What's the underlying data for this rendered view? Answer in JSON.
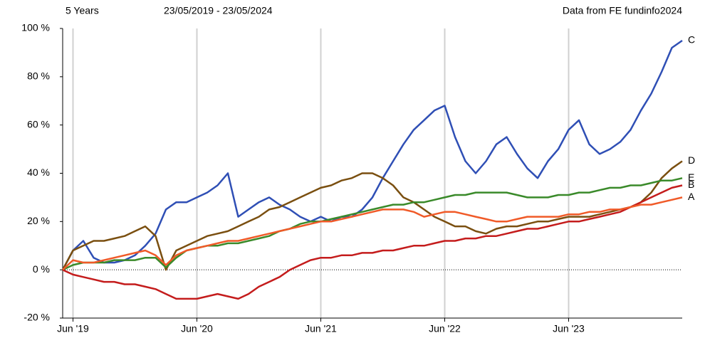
{
  "chart_data": {
    "type": "line",
    "title": "5 Years",
    "subtitle": "23/05/2019 - 23/05/2024",
    "annotation": "Data from FE fundinfo2024",
    "x": [
      "2019-05",
      "2019-06",
      "2019-07",
      "2019-08",
      "2019-09",
      "2019-10",
      "2019-11",
      "2019-12",
      "2020-01",
      "2020-02",
      "2020-03",
      "2020-04",
      "2020-05",
      "2020-06",
      "2020-07",
      "2020-08",
      "2020-09",
      "2020-10",
      "2020-11",
      "2020-12",
      "2021-01",
      "2021-02",
      "2021-03",
      "2021-04",
      "2021-05",
      "2021-06",
      "2021-07",
      "2021-08",
      "2021-09",
      "2021-10",
      "2021-11",
      "2021-12",
      "2022-01",
      "2022-02",
      "2022-03",
      "2022-04",
      "2022-05",
      "2022-06",
      "2022-07",
      "2022-08",
      "2022-09",
      "2022-10",
      "2022-11",
      "2022-12",
      "2023-01",
      "2023-02",
      "2023-03",
      "2023-04",
      "2023-05",
      "2023-06",
      "2023-07",
      "2023-08",
      "2023-09",
      "2023-10",
      "2023-11",
      "2023-12",
      "2024-01",
      "2024-02",
      "2024-03",
      "2024-04",
      "2024-05"
    ],
    "xlim": [
      "2019-05",
      "2024-05"
    ],
    "xticks": [
      {
        "value": "2019-06",
        "label": "Jun '19"
      },
      {
        "value": "2020-06",
        "label": "Jun '20"
      },
      {
        "value": "2021-06",
        "label": "Jun '21"
      },
      {
        "value": "2022-06",
        "label": "Jun '22"
      },
      {
        "value": "2023-06",
        "label": "Jun '23"
      }
    ],
    "ylim": [
      -20,
      100
    ],
    "yticks": [
      {
        "value": 100,
        "label": "100 %"
      },
      {
        "value": 80,
        "label": "80 %"
      },
      {
        "value": 60,
        "label": "60 %"
      },
      {
        "value": 40,
        "label": "40 %"
      },
      {
        "value": 20,
        "label": "20 %"
      },
      {
        "value": 0,
        "label": "0 %"
      },
      {
        "value": -20,
        "label": "-20 %"
      }
    ],
    "grid": true,
    "series": [
      {
        "name": "C",
        "color": "#2f4fb5",
        "values": [
          0,
          8,
          12,
          5,
          3,
          3,
          4,
          6,
          10,
          15,
          25,
          28,
          28,
          30,
          32,
          35,
          40,
          22,
          25,
          28,
          30,
          27,
          25,
          22,
          20,
          22,
          20,
          22,
          22,
          25,
          30,
          38,
          45,
          52,
          58,
          62,
          66,
          68,
          55,
          45,
          40,
          45,
          52,
          55,
          48,
          42,
          38,
          45,
          50,
          58,
          62,
          52,
          48,
          50,
          53,
          58,
          66,
          73,
          82,
          92,
          95
        ]
      },
      {
        "name": "D",
        "color": "#7a4f10",
        "values": [
          0,
          8,
          10,
          12,
          12,
          13,
          14,
          16,
          18,
          14,
          0,
          8,
          10,
          12,
          14,
          15,
          16,
          18,
          20,
          22,
          25,
          26,
          28,
          30,
          32,
          34,
          35,
          37,
          38,
          40,
          40,
          38,
          35,
          30,
          28,
          25,
          22,
          20,
          18,
          18,
          16,
          15,
          17,
          18,
          18,
          19,
          20,
          20,
          21,
          22,
          22,
          22,
          23,
          24,
          25,
          26,
          28,
          32,
          38,
          42,
          45
        ]
      },
      {
        "name": "E",
        "color": "#3a8a2a",
        "values": [
          0,
          2,
          3,
          3,
          3,
          4,
          4,
          4,
          5,
          5,
          1,
          5,
          8,
          9,
          10,
          10,
          11,
          11,
          12,
          13,
          14,
          16,
          17,
          19,
          20,
          20,
          21,
          22,
          23,
          24,
          25,
          26,
          27,
          27,
          28,
          28,
          29,
          30,
          31,
          31,
          32,
          32,
          32,
          32,
          31,
          30,
          30,
          30,
          31,
          31,
          32,
          32,
          33,
          34,
          34,
          35,
          35,
          36,
          37,
          37,
          38
        ]
      },
      {
        "name": "B",
        "color": "#c41c1c",
        "values": [
          0,
          -2,
          -3,
          -4,
          -5,
          -5,
          -6,
          -6,
          -7,
          -8,
          -10,
          -12,
          -12,
          -12,
          -11,
          -10,
          -11,
          -12,
          -10,
          -7,
          -5,
          -3,
          0,
          2,
          4,
          5,
          5,
          6,
          6,
          7,
          7,
          8,
          8,
          9,
          10,
          10,
          11,
          12,
          12,
          13,
          13,
          14,
          14,
          15,
          16,
          17,
          17,
          18,
          19,
          20,
          20,
          21,
          22,
          23,
          24,
          26,
          28,
          30,
          32,
          34,
          35
        ]
      },
      {
        "name": "A",
        "color": "#f05a28",
        "values": [
          0,
          4,
          3,
          3,
          4,
          5,
          6,
          7,
          8,
          6,
          2,
          6,
          8,
          9,
          10,
          11,
          12,
          12,
          13,
          14,
          15,
          16,
          17,
          18,
          19,
          20,
          20,
          21,
          22,
          23,
          24,
          25,
          25,
          25,
          24,
          22,
          23,
          24,
          24,
          23,
          22,
          21,
          20,
          20,
          21,
          22,
          22,
          22,
          22,
          23,
          23,
          24,
          24,
          25,
          25,
          26,
          27,
          27,
          28,
          29,
          30
        ]
      }
    ]
  }
}
